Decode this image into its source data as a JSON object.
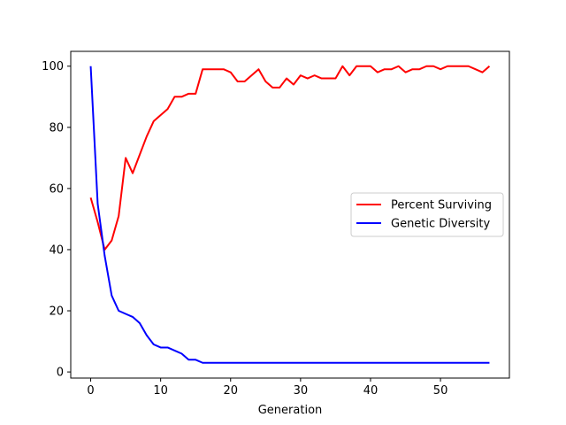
{
  "chart_data": {
    "type": "line",
    "title": "",
    "xlabel": "Generation",
    "ylabel": "",
    "xlim": [
      -2.85,
      59.85
    ],
    "ylim": [
      -2.0,
      104.85
    ],
    "xticks": [
      0,
      10,
      20,
      30,
      40,
      50
    ],
    "yticks": [
      0,
      20,
      40,
      60,
      80,
      100
    ],
    "grid": false,
    "legend_position": "center-right",
    "x": [
      0,
      1,
      2,
      3,
      4,
      5,
      6,
      7,
      8,
      9,
      10,
      11,
      12,
      13,
      14,
      15,
      16,
      17,
      18,
      19,
      20,
      21,
      22,
      23,
      24,
      25,
      26,
      27,
      28,
      29,
      30,
      31,
      32,
      33,
      34,
      35,
      36,
      37,
      38,
      39,
      40,
      41,
      42,
      43,
      44,
      45,
      46,
      47,
      48,
      49,
      50,
      51,
      52,
      53,
      54,
      55,
      56,
      57
    ],
    "series": [
      {
        "name": "Percent Surviving",
        "color": "#ff0000",
        "values": [
          57,
          49,
          40,
          43,
          51,
          70,
          65,
          71,
          77,
          82,
          84,
          86,
          90,
          90,
          91,
          91,
          99,
          99,
          99,
          99,
          98,
          95,
          95,
          97,
          99,
          95,
          93,
          93,
          96,
          94,
          97,
          96,
          97,
          96,
          96,
          96,
          100,
          97,
          100,
          100,
          100,
          98,
          99,
          99,
          100,
          98,
          99,
          99,
          100,
          100,
          99,
          100,
          100,
          100,
          100,
          99,
          98,
          100
        ]
      },
      {
        "name": "Genetic Diversity",
        "color": "#0000ff",
        "values": [
          100,
          55,
          38,
          25,
          20,
          19,
          18,
          16,
          12,
          9,
          8,
          8,
          7,
          6,
          4,
          4,
          3,
          3,
          3,
          3,
          3,
          3,
          3,
          3,
          3,
          3,
          3,
          3,
          3,
          3,
          3,
          3,
          3,
          3,
          3,
          3,
          3,
          3,
          3,
          3,
          3,
          3,
          3,
          3,
          3,
          3,
          3,
          3,
          3,
          3,
          3,
          3,
          3,
          3,
          3,
          3,
          3,
          3
        ]
      }
    ]
  }
}
